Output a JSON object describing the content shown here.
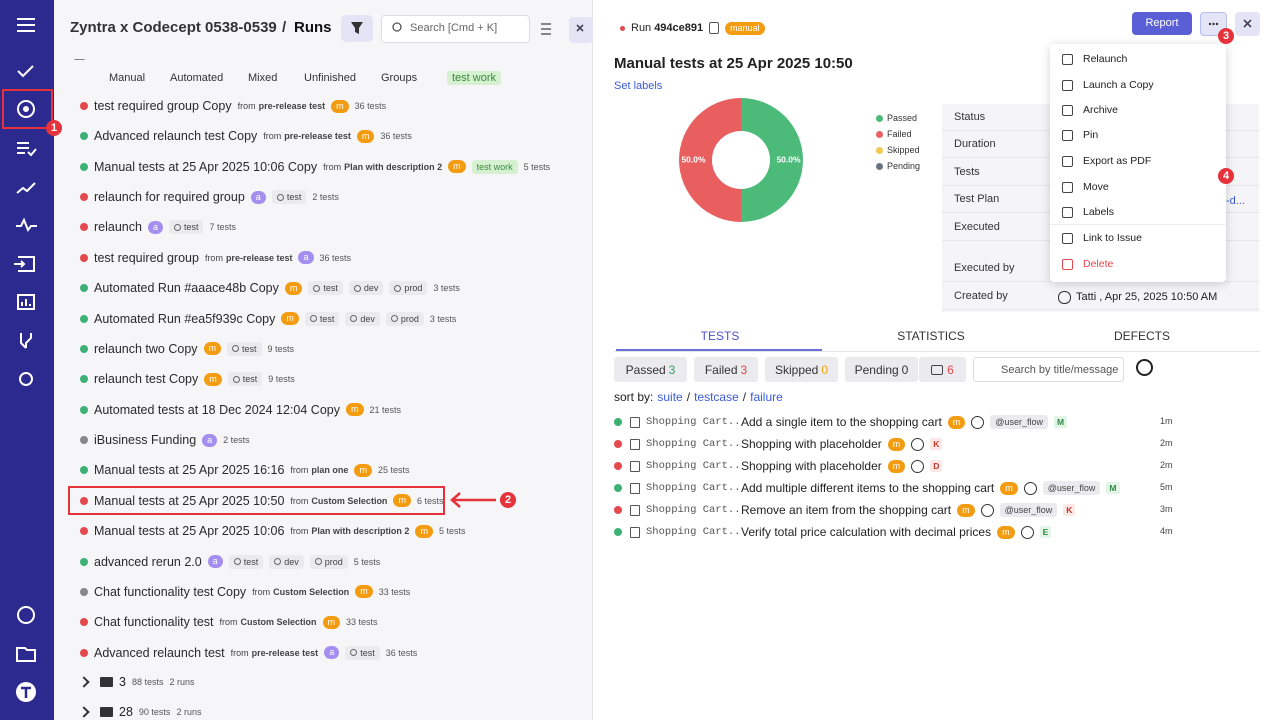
{
  "sidebar": {
    "badge": "1"
  },
  "header": {
    "project": "Zyntra x Codecept 0538-0539",
    "separator": "/",
    "section": "Runs",
    "search": "Search [Cmd + K]"
  },
  "filters": [
    "Manual",
    "Automated",
    "Mixed",
    "Unfinished",
    "Groups",
    "test work"
  ],
  "from": "from",
  "runs": [
    {
      "status": "failed",
      "title": "test required group Copy",
      "plan": "pre-release test",
      "badge": "m",
      "tags": [],
      "tests": "36 tests"
    },
    {
      "status": "passed",
      "title": "Advanced relaunch test Copy",
      "plan": "pre-release test",
      "badge": "m",
      "tags": [],
      "tests": "36 tests"
    },
    {
      "status": "passed",
      "title": "Manual tests at 25 Apr 2025 10:06 Copy",
      "plan": "Plan with description 2",
      "badge": "m",
      "label": "test work",
      "tags": [],
      "tests": "5 tests"
    },
    {
      "status": "failed",
      "title": "relaunch for required group",
      "badge": "a",
      "tags": [
        "test"
      ],
      "tests": "2 tests"
    },
    {
      "status": "failed",
      "title": "relaunch",
      "badge": "a",
      "tags": [
        "test"
      ],
      "tests": "7 tests"
    },
    {
      "status": "failed",
      "title": "test required group",
      "plan": "pre-release test",
      "badge": "a",
      "tags": [],
      "tests": "36 tests"
    },
    {
      "status": "passed",
      "title": "Automated Run #aaace48b Copy",
      "badge": "m",
      "tags": [
        "test",
        "dev",
        "prod"
      ],
      "tests": "3 tests"
    },
    {
      "status": "passed",
      "title": "Automated Run #ea5f939c Copy",
      "badge": "m",
      "tags": [
        "test",
        "dev",
        "prod"
      ],
      "tests": "3 tests"
    },
    {
      "status": "passed",
      "title": "relaunch two Copy",
      "badge": "m",
      "tags": [
        "test"
      ],
      "tests": "9 tests"
    },
    {
      "status": "passed",
      "title": "relaunch test Copy",
      "badge": "m",
      "tags": [
        "test"
      ],
      "tests": "9 tests"
    },
    {
      "status": "passed",
      "title": "Automated tests at 18 Dec 2024 12:04 Copy",
      "badge": "m",
      "tags": [],
      "tests": "21 tests"
    },
    {
      "status": "mixed",
      "title": "iBusiness Funding",
      "badge": "a",
      "tags": [],
      "tests": "2 tests"
    },
    {
      "status": "passed",
      "title": "Manual tests at 25 Apr 2025 16:16",
      "plan": "plan one",
      "badge": "m",
      "tags": [],
      "tests": "25 tests"
    },
    {
      "status": "failed",
      "title": "Manual tests at 25 Apr 2025 10:50",
      "plan": "Custom Selection",
      "badge": "m",
      "tags": [],
      "tests": "6 tests"
    },
    {
      "status": "failed",
      "title": "Manual tests at 25 Apr 2025 10:06",
      "plan": "Plan with description 2",
      "badge": "m",
      "tags": [],
      "tests": "5 tests"
    },
    {
      "status": "passed",
      "title": "advanced rerun 2.0",
      "badge": "a",
      "tags": [
        "test",
        "dev",
        "prod"
      ],
      "tests": "5 tests"
    },
    {
      "status": "mixed",
      "title": "Chat functionality test Copy",
      "plan": "Custom Selection",
      "badge": "m",
      "tags": [],
      "tests": "33 tests"
    },
    {
      "status": "failed",
      "title": "Chat functionality test",
      "plan": "Custom Selection",
      "badge": "m",
      "tags": [],
      "tests": "33 tests"
    },
    {
      "status": "failed",
      "title": "Advanced relaunch test",
      "plan": "pre-release test",
      "badge": "a",
      "tags": [
        "test"
      ],
      "tests": "36 tests"
    }
  ],
  "folders": [
    {
      "name": "3",
      "tests": "88 tests",
      "runs": "2 runs"
    },
    {
      "name": "28",
      "tests": "90 tests",
      "runs": "2 runs"
    }
  ],
  "callouts": {
    "list": "2",
    "menu_button": "3",
    "menu_item": "4"
  },
  "run": {
    "label": "Run",
    "id": "494ce891",
    "kind": "manual",
    "report": "Report",
    "title": "Manual tests at 25 Apr 2025 10:50",
    "set_labels": "Set labels",
    "chart": {
      "type": "pie",
      "categories": [
        "Passed",
        "Failed",
        "Skipped",
        "Pending"
      ],
      "values": [
        50,
        50,
        0,
        0
      ],
      "value_labels": [
        "50.0%",
        "50.0%",
        null,
        null
      ],
      "colors": [
        "#4cbb7a",
        "#e95f5f",
        "#f2c94c",
        "#6b7280"
      ]
    },
    "details": {
      "labels": [
        "Status",
        "Duration",
        "Tests",
        "Test Plan",
        "Executed",
        "Executed by",
        "Created by"
      ],
      "test_plan": "-d...",
      "created_by": "Tatti , Apr 25, 2025 10:50 AM"
    },
    "menu": [
      "Relaunch",
      "Launch a Copy",
      "Archive",
      "Pin",
      "Export as PDF",
      "Move",
      "Labels",
      "Link to Issue",
      "Delete"
    ],
    "tabs": [
      "TESTS",
      "STATISTICS",
      "DEFECTS"
    ],
    "counts": [
      {
        "label": "Passed",
        "value": 3,
        "color": "#2fa363"
      },
      {
        "label": "Failed",
        "value": 3,
        "color": "#e04848"
      },
      {
        "label": "Skipped",
        "value": 0,
        "color": "#f0a500"
      },
      {
        "label": "Pending",
        "value": 0,
        "color": "#333333"
      }
    ],
    "comments": 6,
    "search": "Search by title/message",
    "sort": {
      "label": "sort by:",
      "options": [
        "suite",
        "testcase",
        "failure"
      ],
      "separator": "/"
    },
    "tests": [
      {
        "status": "passed",
        "suite": "Shopping Cart...",
        "title": "Add a single item to the shopping cart",
        "badge": "m",
        "label": "@user_flow",
        "key": "M",
        "time": "1m"
      },
      {
        "status": "failed",
        "suite": "Shopping Cart...",
        "title": "Shopping with placeholder",
        "badge": "m",
        "key": "K",
        "time": "2m"
      },
      {
        "status": "failed",
        "suite": "Shopping Cart...",
        "title": "Shopping with placeholder",
        "badge": "m",
        "key": "D",
        "time": "2m"
      },
      {
        "status": "passed",
        "suite": "Shopping Cart...",
        "title": "Add multiple different items to the shopping cart",
        "badge": "m",
        "label": "@user_flow",
        "key": "M",
        "time": "5m"
      },
      {
        "status": "failed",
        "suite": "Shopping Cart...",
        "title": "Remove an item from the shopping cart",
        "badge": "m",
        "label": "@user_flow",
        "key": "K",
        "time": "3m"
      },
      {
        "status": "passed",
        "suite": "Shopping Cart...",
        "title": "Verify total price calculation with decimal prices",
        "badge": "m",
        "key": "E",
        "time": "4m"
      }
    ]
  }
}
